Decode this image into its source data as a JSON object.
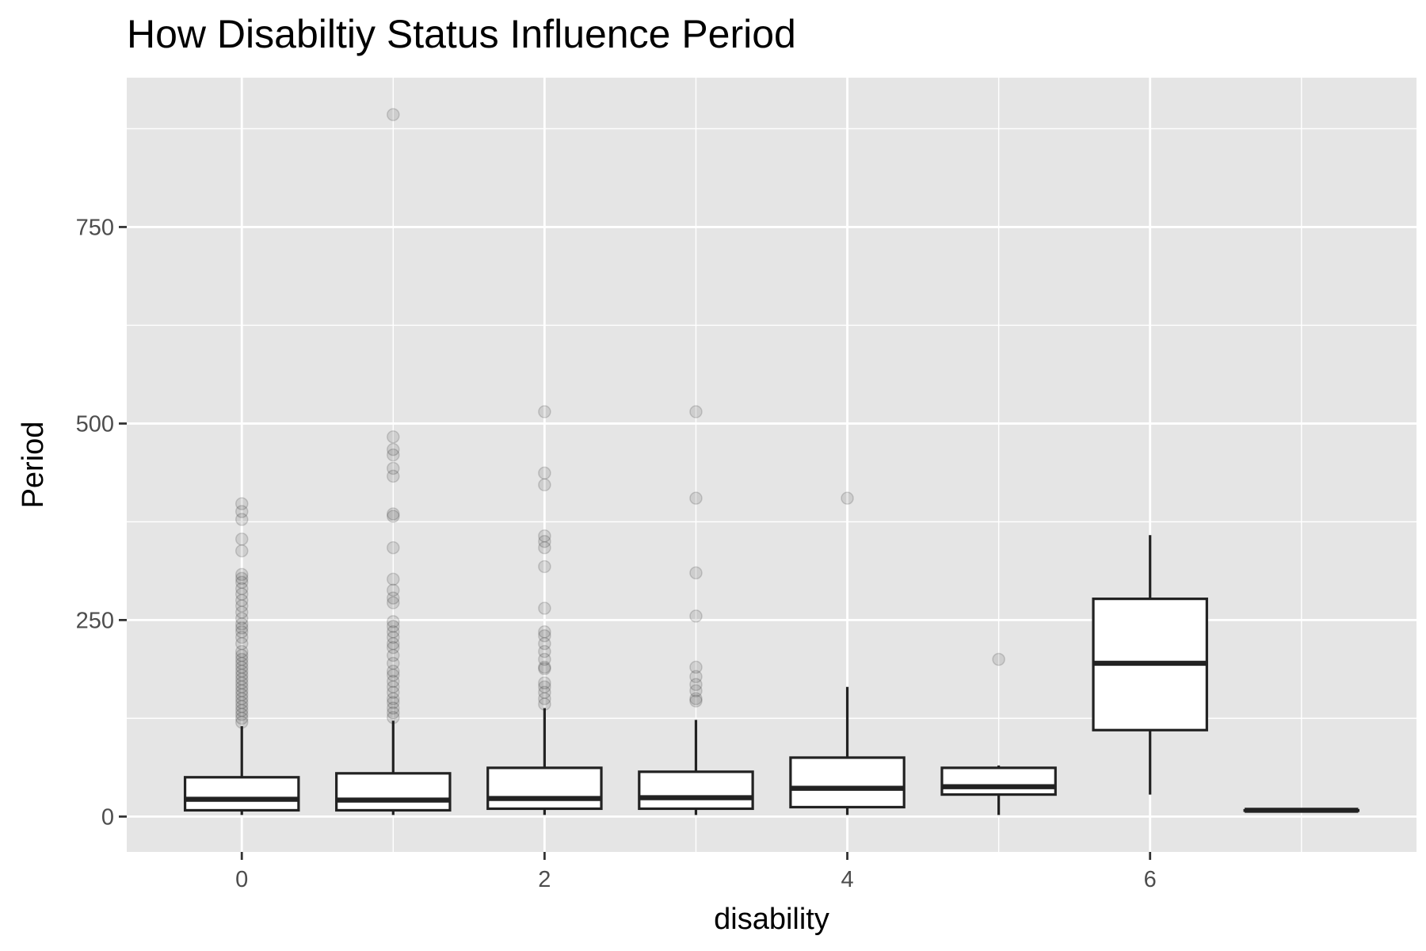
{
  "chart_data": {
    "type": "boxplot",
    "title": "How Disabiltiy Status Influence Period",
    "xlabel": "disability",
    "ylabel": "Period",
    "x_ticks": [
      0,
      2,
      4,
      6
    ],
    "y_ticks": [
      0,
      250,
      500,
      750
    ],
    "xlim": [
      -0.76,
      7.76
    ],
    "ylim": [
      -45,
      940
    ],
    "grid": true,
    "legend": "none",
    "colors": {
      "panel_background": "#e5e5e5",
      "grid": "#ffffff",
      "box_fill": "#ffffff",
      "box_line": "#222222",
      "outlier": "#000000"
    },
    "boxes": [
      {
        "x": 0,
        "lower_whisker": 2,
        "q1": 8,
        "median": 22,
        "q3": 50,
        "upper_whisker": 115,
        "outliers": [
          120,
          125,
          130,
          135,
          140,
          145,
          150,
          155,
          160,
          165,
          170,
          175,
          180,
          185,
          190,
          195,
          200,
          205,
          210,
          220,
          228,
          235,
          240,
          245,
          252,
          260,
          268,
          275,
          283,
          290,
          298,
          303,
          308,
          338,
          353,
          378,
          388,
          398
        ]
      },
      {
        "x": 1,
        "lower_whisker": 2,
        "q1": 8,
        "median": 21,
        "q3": 55,
        "upper_whisker": 122,
        "outliers": [
          126,
          132,
          138,
          145,
          150,
          158,
          165,
          172,
          180,
          185,
          195,
          205,
          215,
          220,
          228,
          235,
          242,
          248,
          272,
          278,
          288,
          302,
          342,
          382,
          385,
          433,
          443,
          460,
          467,
          483,
          893
        ]
      },
      {
        "x": 2,
        "lower_whisker": 2,
        "q1": 10,
        "median": 23,
        "q3": 62,
        "upper_whisker": 138,
        "outliers": [
          143,
          150,
          158,
          165,
          170,
          188,
          190,
          200,
          210,
          220,
          230,
          235,
          265,
          318,
          342,
          350,
          357,
          422,
          437,
          515
        ]
      },
      {
        "x": 3,
        "lower_whisker": 2,
        "q1": 10,
        "median": 24,
        "q3": 57,
        "upper_whisker": 123,
        "outliers": [
          147,
          150,
          160,
          168,
          178,
          190,
          255,
          310,
          405,
          515
        ]
      },
      {
        "x": 4,
        "lower_whisker": 2,
        "q1": 12,
        "median": 36,
        "q3": 75,
        "upper_whisker": 165,
        "outliers": [
          405
        ]
      },
      {
        "x": 5,
        "lower_whisker": 2,
        "q1": 28,
        "median": 38,
        "q3": 62,
        "upper_whisker": 65,
        "outliers": [
          200
        ]
      },
      {
        "x": 6,
        "lower_whisker": 28,
        "q1": 110,
        "median": 195,
        "q3": 277,
        "upper_whisker": 358,
        "outliers": []
      },
      {
        "x": 7,
        "lower_whisker": 8,
        "q1": 8,
        "median": 8,
        "q3": 8,
        "upper_whisker": 8,
        "outliers": []
      }
    ]
  }
}
